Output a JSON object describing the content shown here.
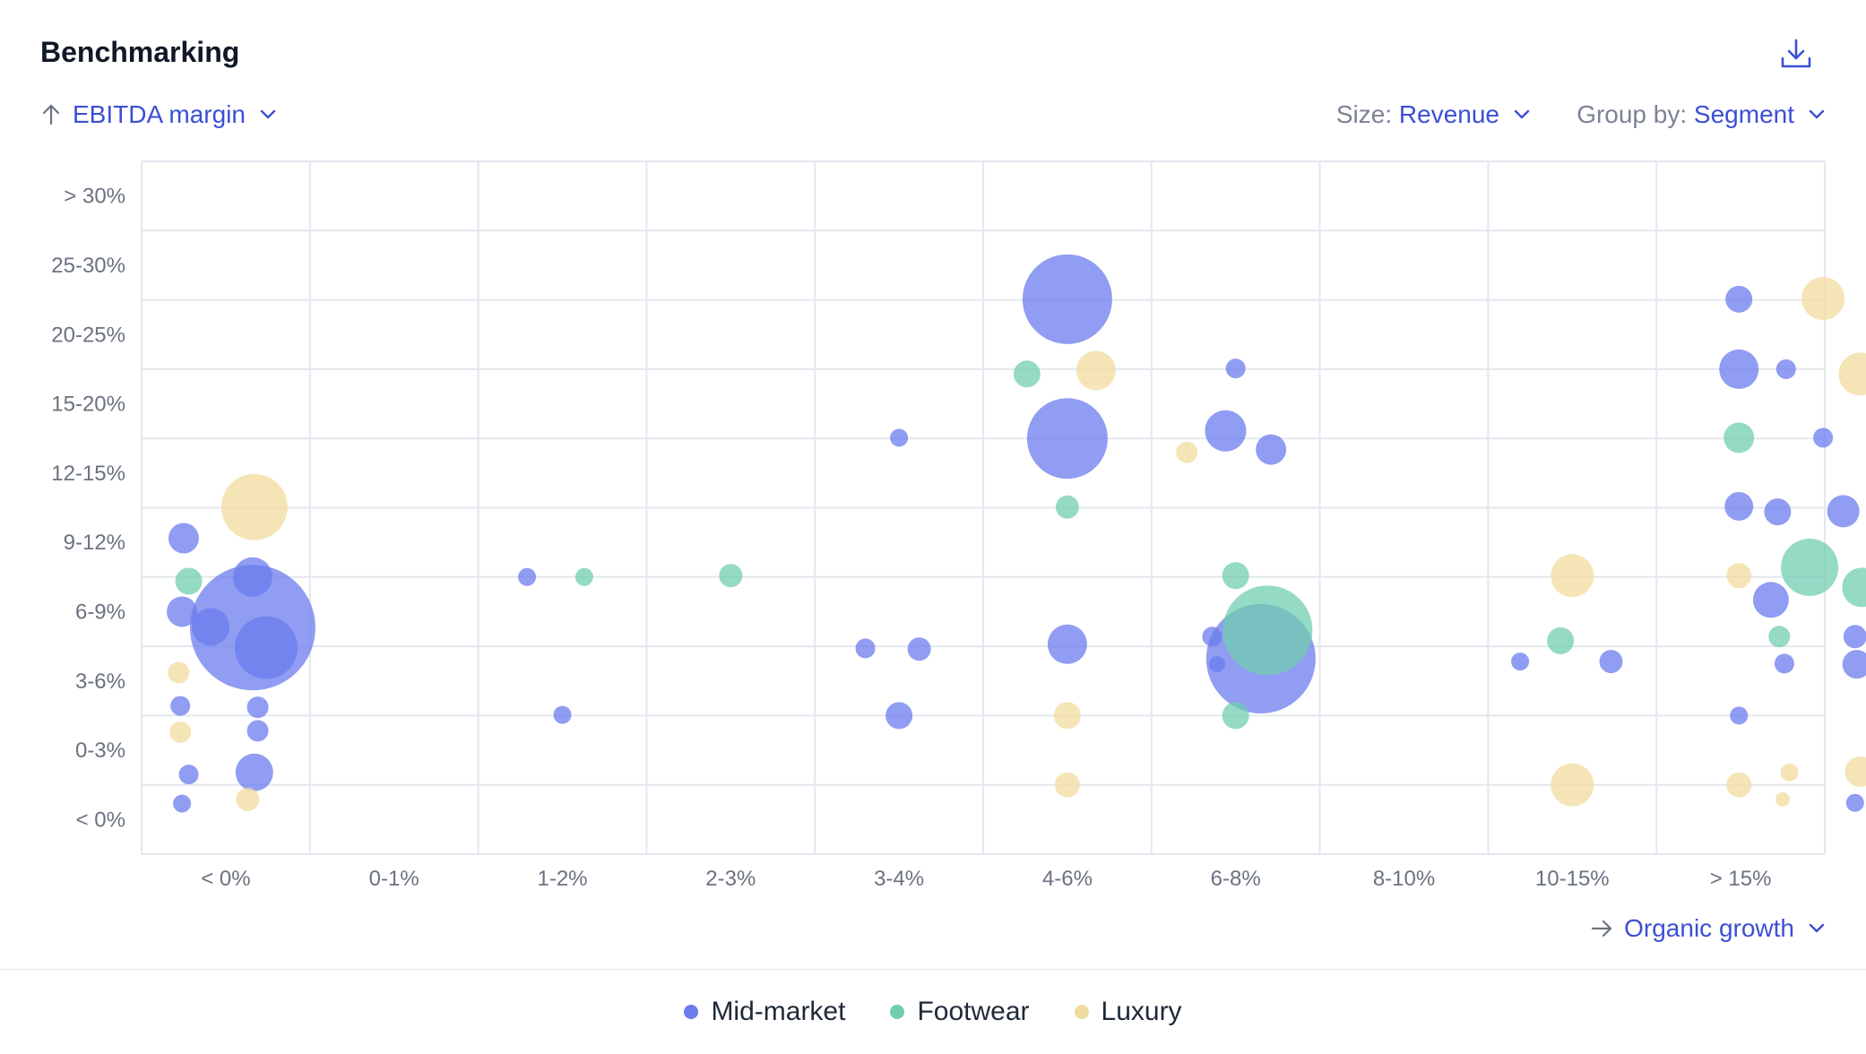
{
  "header": {
    "title": "Benchmarking",
    "download_icon": "download-icon"
  },
  "controls": {
    "y_metric": {
      "icon": "arrow-up-icon",
      "value": "EBITDA margin"
    },
    "size": {
      "label": "Size: ",
      "value": "Revenue"
    },
    "group_by": {
      "label": "Group by: ",
      "value": "Segment"
    },
    "x_metric": {
      "icon": "arrow-right-icon",
      "value": "Organic growth"
    }
  },
  "colors": {
    "Mid-market": "#6b7ced",
    "Footwear": "#71cdb0",
    "Luxury": "#f1dc9d",
    "grid": "#e3e7ef",
    "accent": "#3b4fd6"
  },
  "chart_data": {
    "type": "scatter",
    "subtype": "bubble",
    "title": "",
    "xlabel": "Organic growth",
    "ylabel": "EBITDA margin",
    "size_by": "Revenue",
    "group_by": "Segment",
    "grid": true,
    "legend_position": "bottom-center",
    "x_categories": [
      "< 0%",
      "0-1%",
      "1-2%",
      "2-3%",
      "3-4%",
      "4-6%",
      "6-8%",
      "8-10%",
      "10-15%",
      "> 15%"
    ],
    "y_categories": [
      "< 0%",
      "0-3%",
      "3-6%",
      "6-9%",
      "9-12%",
      "12-15%",
      "15-20%",
      "20-25%",
      "25-30%",
      "> 30%"
    ],
    "series": [
      {
        "name": "Mid-market",
        "points": [
          {
            "x": -0.25,
            "y": 4.06,
            "r": 17
          },
          {
            "x": -0.26,
            "y": 3.0,
            "r": 17
          },
          {
            "x": -0.09,
            "y": 2.78,
            "r": 21
          },
          {
            "x": 0.16,
            "y": 2.77,
            "r": 70
          },
          {
            "x": 0.24,
            "y": 2.48,
            "r": 35
          },
          {
            "x": 0.16,
            "y": 3.5,
            "r": 22
          },
          {
            "x": -0.27,
            "y": 1.64,
            "r": 11
          },
          {
            "x": 0.19,
            "y": 1.62,
            "r": 12
          },
          {
            "x": 0.19,
            "y": 1.28,
            "r": 12
          },
          {
            "x": -0.22,
            "y": 0.65,
            "r": 11
          },
          {
            "x": 0.17,
            "y": 0.68,
            "r": 21
          },
          {
            "x": -0.26,
            "y": 0.23,
            "r": 10
          },
          {
            "x": 1.79,
            "y": 3.5,
            "r": 10
          },
          {
            "x": 2.0,
            "y": 1.51,
            "r": 10
          },
          {
            "x": 4.0,
            "y": 5.51,
            "r": 10
          },
          {
            "x": 3.8,
            "y": 2.47,
            "r": 11
          },
          {
            "x": 4.12,
            "y": 2.46,
            "r": 13
          },
          {
            "x": 4.0,
            "y": 1.5,
            "r": 15
          },
          {
            "x": 5.0,
            "y": 7.51,
            "r": 50
          },
          {
            "x": 5.0,
            "y": 5.5,
            "r": 45
          },
          {
            "x": 5.0,
            "y": 2.53,
            "r": 22
          },
          {
            "x": 6.0,
            "y": 6.51,
            "r": 11
          },
          {
            "x": 5.94,
            "y": 5.61,
            "r": 23
          },
          {
            "x": 6.21,
            "y": 5.34,
            "r": 17
          },
          {
            "x": 5.86,
            "y": 2.64,
            "r": 11
          },
          {
            "x": 5.89,
            "y": 2.24,
            "r": 9
          },
          {
            "x": 6.15,
            "y": 2.32,
            "r": 61
          },
          {
            "x": 7.69,
            "y": 2.28,
            "r": 10
          },
          {
            "x": 8.23,
            "y": 2.28,
            "r": 13
          },
          {
            "x": 8.99,
            "y": 7.51,
            "r": 15
          },
          {
            "x": 8.99,
            "y": 6.5,
            "r": 22
          },
          {
            "x": 8.99,
            "y": 4.52,
            "r": 16
          },
          {
            "x": 8.99,
            "y": 1.5,
            "r": 10
          },
          {
            "x": 9.27,
            "y": 6.5,
            "r": 11
          },
          {
            "x": 9.49,
            "y": 5.51,
            "r": 11
          },
          {
            "x": 9.22,
            "y": 4.44,
            "r": 15
          },
          {
            "x": 9.61,
            "y": 4.45,
            "r": 18
          },
          {
            "x": 9.18,
            "y": 3.17,
            "r": 20
          },
          {
            "x": 9.68,
            "y": 2.64,
            "r": 13
          },
          {
            "x": 9.26,
            "y": 2.25,
            "r": 11
          },
          {
            "x": 9.69,
            "y": 2.24,
            "r": 16
          },
          {
            "x": 9.68,
            "y": 0.24,
            "r": 10
          }
        ]
      },
      {
        "name": "Footwear",
        "points": [
          {
            "x": -0.22,
            "y": 3.44,
            "r": 15
          },
          {
            "x": 2.13,
            "y": 3.5,
            "r": 10
          },
          {
            "x": 3.0,
            "y": 3.52,
            "r": 13
          },
          {
            "x": 4.76,
            "y": 6.43,
            "r": 15
          },
          {
            "x": 5.0,
            "y": 4.51,
            "r": 13
          },
          {
            "x": 6.0,
            "y": 3.52,
            "r": 15
          },
          {
            "x": 6.19,
            "y": 2.73,
            "r": 50
          },
          {
            "x": 7.93,
            "y": 2.58,
            "r": 15
          },
          {
            "x": 6.0,
            "y": 1.5,
            "r": 15
          },
          {
            "x": 8.99,
            "y": 5.51,
            "r": 17
          },
          {
            "x": 9.41,
            "y": 3.64,
            "r": 32
          },
          {
            "x": 9.72,
            "y": 3.35,
            "r": 22
          },
          {
            "x": 9.23,
            "y": 2.64,
            "r": 12
          }
        ]
      },
      {
        "name": "Luxury",
        "points": [
          {
            "x": 0.17,
            "y": 4.51,
            "r": 37
          },
          {
            "x": -0.28,
            "y": 2.12,
            "r": 12
          },
          {
            "x": -0.27,
            "y": 1.26,
            "r": 12
          },
          {
            "x": 0.13,
            "y": 0.29,
            "r": 13
          },
          {
            "x": 5.17,
            "y": 6.48,
            "r": 22
          },
          {
            "x": 5.0,
            "y": 1.5,
            "r": 15
          },
          {
            "x": 5.0,
            "y": 0.5,
            "r": 14
          },
          {
            "x": 5.71,
            "y": 5.3,
            "r": 12
          },
          {
            "x": 8.0,
            "y": 3.52,
            "r": 24
          },
          {
            "x": 8.0,
            "y": 0.5,
            "r": 24
          },
          {
            "x": 8.99,
            "y": 3.52,
            "r": 14
          },
          {
            "x": 8.99,
            "y": 0.5,
            "r": 14
          },
          {
            "x": 9.49,
            "y": 7.52,
            "r": 24
          },
          {
            "x": 9.71,
            "y": 6.43,
            "r": 24
          },
          {
            "x": 9.71,
            "y": 0.69,
            "r": 17
          },
          {
            "x": 9.29,
            "y": 0.68,
            "r": 10
          },
          {
            "x": 9.25,
            "y": 0.29,
            "r": 8
          }
        ]
      }
    ]
  }
}
